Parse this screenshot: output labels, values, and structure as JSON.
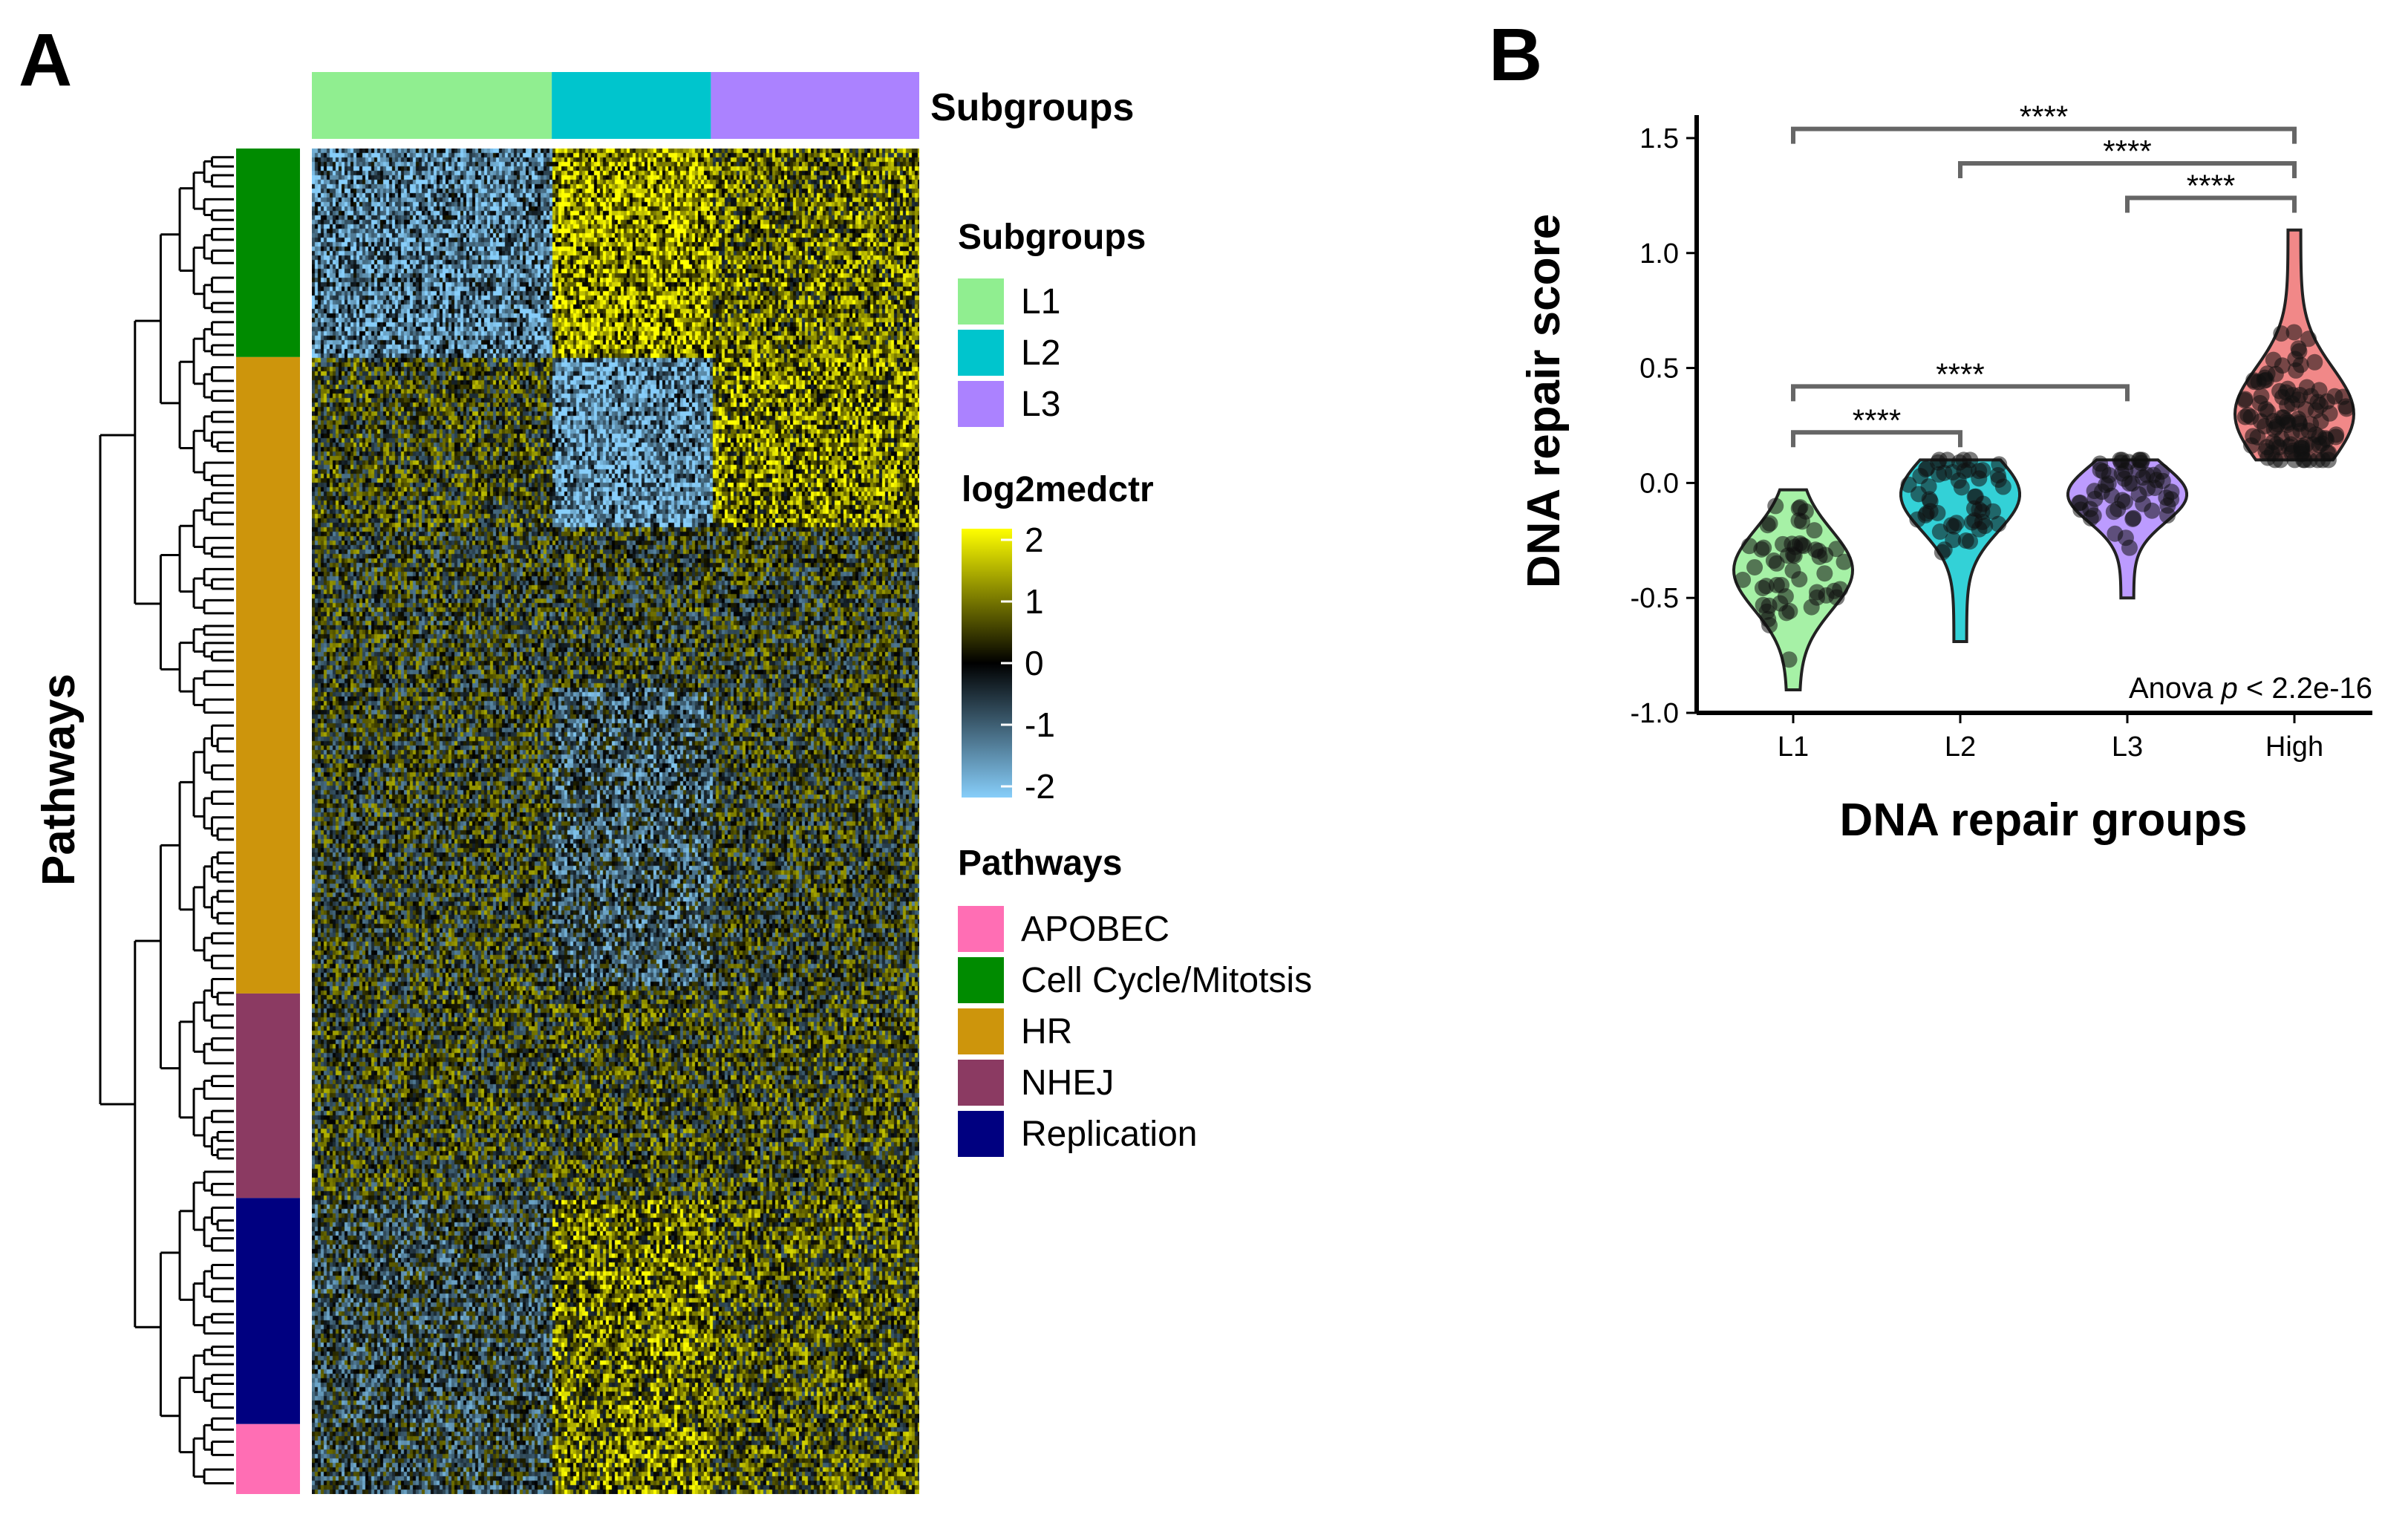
{
  "panel_a": {
    "letter": "A",
    "subgroups_annotation_label": "Subgroups",
    "y_axis_label": "Pathways",
    "subgroup_blocks": [
      {
        "label": "L1",
        "color": "#90EE90",
        "share": 0.395
      },
      {
        "label": "L2",
        "color": "#00C5CD",
        "share": 0.262
      },
      {
        "label": "L3",
        "color": "#AB82FF",
        "share": 0.343
      }
    ],
    "pathway_blocks": [
      {
        "label": "Cell Cycle/Mitotsis",
        "color": "#008B00",
        "share": 0.155
      },
      {
        "label": "HR",
        "color": "#CD950C",
        "share": 0.473
      },
      {
        "label": "NHEJ",
        "color": "#8B3A62",
        "share": 0.152
      },
      {
        "label": "Replication",
        "color": "#000080",
        "share": 0.168
      },
      {
        "label": "APOBEC",
        "color": "#FF6EB4",
        "share": 0.052
      }
    ],
    "legend_subgroups": {
      "title": "Subgroups",
      "items": [
        {
          "label": "L1",
          "color": "#90EE90"
        },
        {
          "label": "L2",
          "color": "#00C5CD"
        },
        {
          "label": "L3",
          "color": "#AB82FF"
        }
      ]
    },
    "legend_scale": {
      "title": "log2medctr",
      "ticks": [
        "2",
        "1",
        "0",
        "-1",
        "-2"
      ],
      "colors": {
        "high": "#FFFF00",
        "mid": "#000000",
        "low": "#87CEFA"
      }
    },
    "legend_pathways": {
      "title": "Pathways",
      "items": [
        {
          "label": "APOBEC",
          "color": "#FF6EB4"
        },
        {
          "label": "Cell Cycle/Mitotsis",
          "color": "#008B00"
        },
        {
          "label": "HR",
          "color": "#CD950C"
        },
        {
          "label": "NHEJ",
          "color": "#8B3A62"
        },
        {
          "label": "Replication",
          "color": "#000080"
        }
      ]
    }
  },
  "panel_b": {
    "letter": "B",
    "chart_data": {
      "type": "violin",
      "title": "",
      "xlabel": "DNA repair groups",
      "ylabel": "DNA repair score",
      "categories": [
        "L1",
        "L2",
        "L3",
        "High"
      ],
      "colors": [
        "#90EE90",
        "#00C5CD",
        "#AB82FF",
        "#EE6A6A"
      ],
      "ylim": [
        -1.0,
        1.6
      ],
      "yticks": [
        -1.0,
        -0.5,
        0.0,
        0.5,
        1.0,
        1.5
      ],
      "ytick_labels": [
        "-1.0",
        "-0.5",
        "0.0",
        "0.5",
        "1.0",
        "1.5"
      ],
      "violins": [
        {
          "category": "L1",
          "min": -0.9,
          "max": -0.03,
          "mode": -0.38,
          "median": -0.37
        },
        {
          "category": "L2",
          "min": -0.69,
          "max": 0.1,
          "mode": -0.05,
          "median": -0.22
        },
        {
          "category": "L3",
          "min": -0.5,
          "max": 0.1,
          "mode": -0.05,
          "median": -0.15
        },
        {
          "category": "High",
          "min": 0.1,
          "max": 1.1,
          "mode": 0.3,
          "median": 0.4
        }
      ],
      "comparisons": [
        {
          "from": "L1",
          "to": "High",
          "y": 1.54,
          "label": "****"
        },
        {
          "from": "L2",
          "to": "High",
          "y": 1.39,
          "label": "****"
        },
        {
          "from": "L3",
          "to": "High",
          "y": 1.24,
          "label": "****"
        },
        {
          "from": "L1",
          "to": "L3",
          "y": 0.42,
          "label": "****"
        },
        {
          "from": "L1",
          "to": "L2",
          "y": 0.22,
          "label": "****"
        }
      ],
      "annotation": {
        "prefix": "Anova ",
        "italic": "p",
        "suffix": " < 2.2e-16"
      }
    }
  }
}
